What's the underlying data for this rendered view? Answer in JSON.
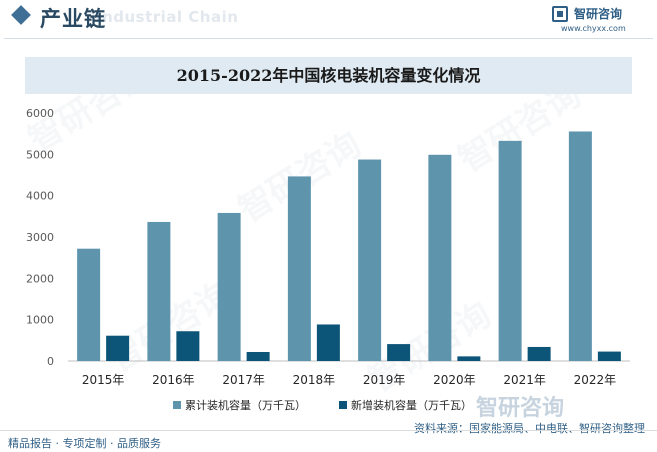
{
  "header": {
    "section_title": "产业链",
    "section_title_en": "Industrial Chain",
    "brand_name": "智研咨询",
    "brand_url": "www.chyxx.com"
  },
  "watermark": {
    "text": "智研咨询"
  },
  "colors": {
    "series_cumulative": "#5e95ad",
    "series_new": "#0d5578",
    "title_band": "#dfeaf2",
    "accent": "#2f5f86"
  },
  "chart_data": {
    "type": "bar",
    "title": "2015-2022年中国核电装机容量变化情况",
    "categories": [
      "2015年",
      "2016年",
      "2017年",
      "2018年",
      "2019年",
      "2020年",
      "2021年",
      "2022年"
    ],
    "series": [
      {
        "name": "累计装机容量（万千瓦）",
        "values": [
          2717,
          3364,
          3582,
          4466,
          4874,
          4989,
          5326,
          5553
        ]
      },
      {
        "name": "新增装机容量（万千瓦）",
        "values": [
          612,
          720,
          218,
          884,
          409,
          112,
          340,
          228
        ]
      }
    ],
    "ylim": [
      0,
      6000
    ],
    "yticks": [
      0,
      1000,
      2000,
      3000,
      4000,
      5000,
      6000
    ],
    "xlabel": "",
    "ylabel": "",
    "grid": false,
    "legend_position": "bottom"
  },
  "footer": {
    "left": "精品报告 · 专项定制 · 品质服务",
    "source": "资料来源：国家能源局、中电联、智研咨询整理"
  }
}
